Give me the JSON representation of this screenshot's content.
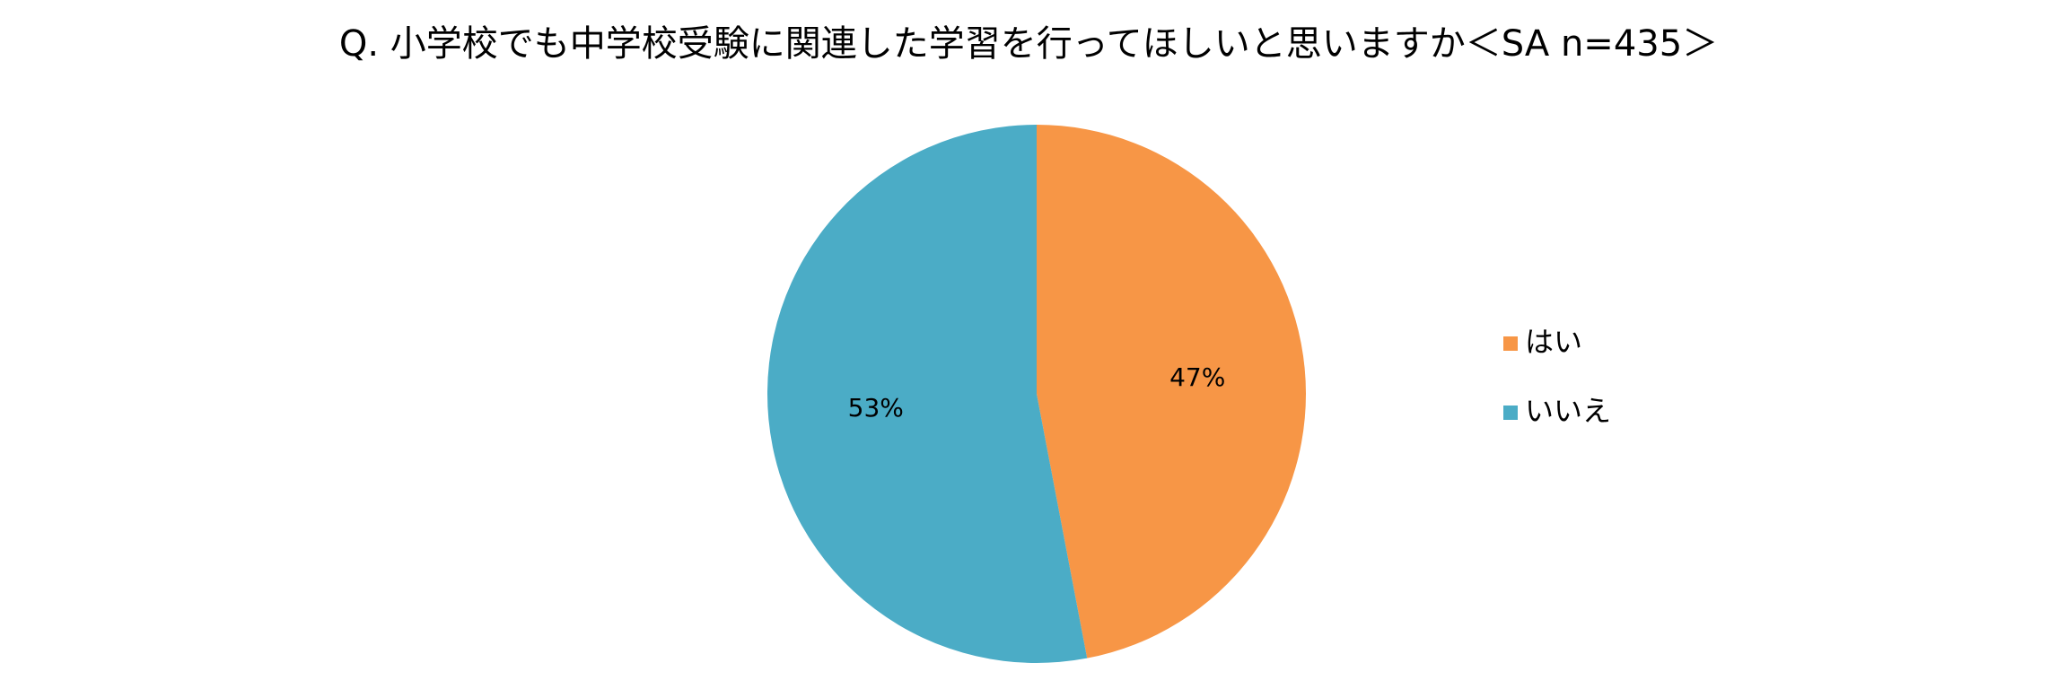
{
  "chart_data": {
    "type": "pie",
    "title": "Q. 小学校でも中学校受験に関連した学習を行ってほしいと思いますか＜SA n=435＞",
    "categories": [
      "はい",
      "いいえ"
    ],
    "values": [
      47,
      53
    ],
    "value_labels": [
      "47%",
      "53%"
    ],
    "colors": [
      "#f79646",
      "#4bacc6"
    ],
    "legend": "right"
  }
}
